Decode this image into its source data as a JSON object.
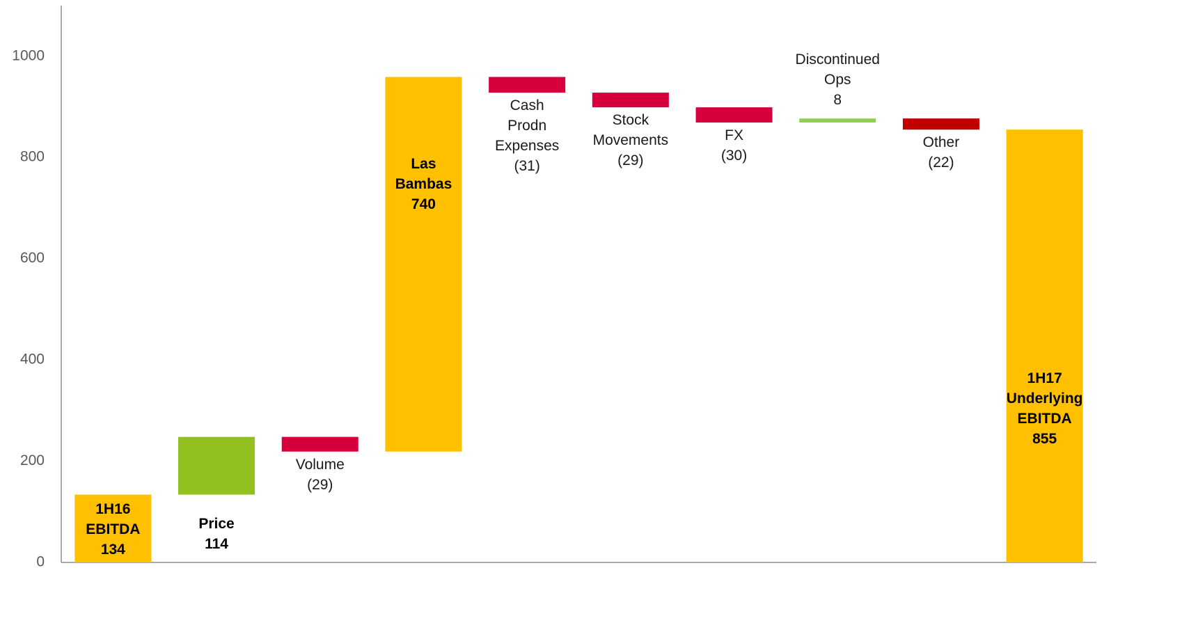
{
  "chart_data": {
    "type": "waterfall",
    "categories": [
      "1H16 EBITDA",
      "Price",
      "Volume",
      "Las Bambas",
      "Cash Prodn Expenses",
      "Stock Movements",
      "FX",
      "Discontinued Ops",
      "Other",
      "1H17 Underlying EBITDA"
    ],
    "values": [
      134,
      114,
      -29,
      740,
      -31,
      -29,
      -30,
      8,
      -22,
      855
    ],
    "value_labels": [
      "134",
      "114",
      "(29)",
      "740",
      "(31)",
      "(29)",
      "(30)",
      "8",
      "(22)",
      "855"
    ],
    "measures": [
      "total",
      "delta",
      "delta",
      "delta",
      "delta",
      "delta",
      "delta",
      "delta",
      "delta",
      "total"
    ],
    "colors": [
      "#FFC000",
      "#92C01F",
      "#D6003C",
      "#FFC000",
      "#D6003C",
      "#D6003C",
      "#D6003C",
      "#8FD14F",
      "#C00000",
      "#FFC000"
    ],
    "ylim": [
      0,
      1100
    ],
    "yticks": [
      0,
      200,
      400,
      600,
      800,
      1000
    ],
    "grid": false
  }
}
